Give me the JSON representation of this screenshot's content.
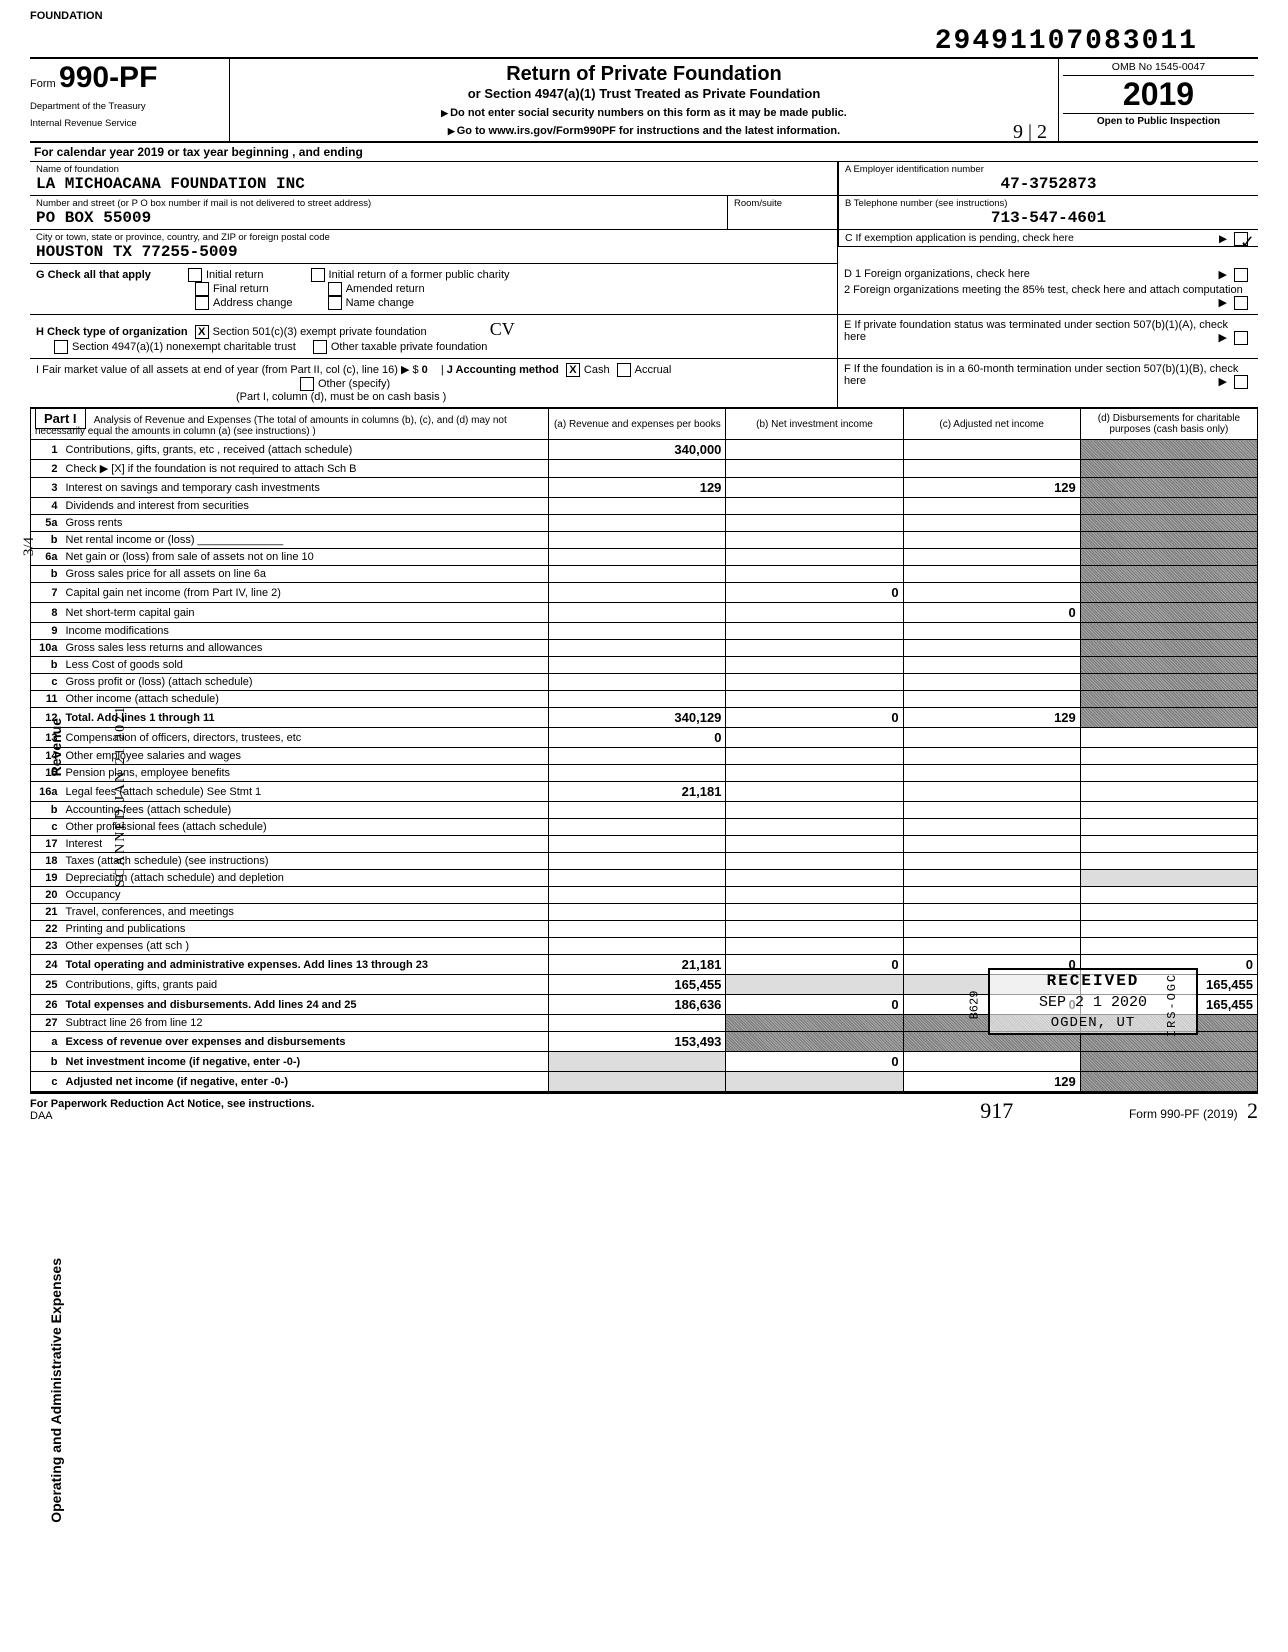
{
  "top_annotation": "FOUNDATION",
  "barcode_number": "29491107083011",
  "header": {
    "form_word": "Form",
    "form_number": "990-PF",
    "dept1": "Department of the Treasury",
    "dept2": "Internal Revenue Service",
    "title": "Return of Private Foundation",
    "subtitle": "or Section 4947(a)(1) Trust Treated as Private Foundation",
    "note1": "Do not enter social security numbers on this form as it may be made public.",
    "note2": "Go to www.irs.gov/Form990PF for instructions and the latest information.",
    "omb": "OMB No  1545-0047",
    "year": "2019",
    "open": "Open to Public Inspection",
    "hand_912": "9 | 2"
  },
  "cal_year": "For calendar year 2019 or tax year beginning                                 , and ending",
  "name_block": {
    "name_label": "Name of foundation",
    "name_value": "LA MICHOACANA FOUNDATION INC",
    "addr_label": "Number and street (or P O  box number if mail is not delivered to street address)",
    "addr_value": "PO BOX 55009",
    "room_label": "Room/suite",
    "city_label": "City or town, state or province, country, and ZIP or foreign postal code",
    "city_value": "HOUSTON                       TX 77255-5009"
  },
  "right_block": {
    "a_label": "A    Employer identification number",
    "a_value": "47-3752873",
    "b_label": "B    Telephone number (see instructions)",
    "b_value": "713-547-4601",
    "c_label": "C    If exemption application is pending, check here",
    "d1_label": "D   1   Foreign organizations, check here",
    "d2_label": "2   Foreign organizations meeting the 85% test, check here and attach computation",
    "e_label": "E    If private foundation status was terminated under section 507(b)(1)(A), check here",
    "f_label": "F    If the foundation is in a 60-month termination under section 507(b)(1)(B), check here"
  },
  "g_block": {
    "g_label": "G  Check all that apply",
    "opts": [
      "Initial return",
      "Final return",
      "Address change",
      "Initial return of a former public charity",
      "Amended return",
      "Name change"
    ]
  },
  "h_block": {
    "h_label": "H  Check type of organization",
    "opt1": "Section 501(c)(3) exempt private foundation",
    "opt2": "Section 4947(a)(1) nonexempt charitable trust",
    "opt3": "Other taxable private foundation",
    "hand_cv": "CV"
  },
  "i_block": {
    "i_label": "I   Fair market value of all assets at end of year (from Part II, col  (c), line 16) ▶  $",
    "i_value": "0",
    "j_label": "J   Accounting method",
    "j_cash": "Cash",
    "j_accrual": "Accrual",
    "j_other": "Other (specify)",
    "j_note": "(Part I, column (d), must be on cash basis )"
  },
  "part1": {
    "label": "Part I",
    "desc": "Analysis of Revenue and Expenses (The total of amounts in columns (b), (c), and (d) may not necessarily equal the amounts in column (a) (see instructions) )",
    "cols": {
      "a": "(a) Revenue and expenses per books",
      "b": "(b) Net investment income",
      "c": "(c) Adjusted net income",
      "d": "(d) Disbursements for charitable purposes (cash basis only)"
    }
  },
  "sidebars": {
    "revenue": "Revenue",
    "expenses": "Operating and Administrative Expenses",
    "scanned_date": "SCANNED JAN 21 2021",
    "hand_34": "3/4"
  },
  "lines": [
    {
      "n": "1",
      "desc": "Contributions, gifts, grants, etc , received (attach schedule)",
      "a": "340,000",
      "b": "",
      "c": "",
      "d": ""
    },
    {
      "n": "2",
      "desc": "Check ▶  [X]   if the foundation is not required to attach Sch  B",
      "a": "",
      "b": "",
      "c": "",
      "d": ""
    },
    {
      "n": "3",
      "desc": "Interest on savings and temporary cash investments",
      "a": "129",
      "b": "",
      "c": "129",
      "d": ""
    },
    {
      "n": "4",
      "desc": "Dividends and interest from securities",
      "a": "",
      "b": "",
      "c": "",
      "d": ""
    },
    {
      "n": "5a",
      "desc": "Gross rents",
      "a": "",
      "b": "",
      "c": "",
      "d": ""
    },
    {
      "n": "b",
      "desc": "Net rental income or (loss)  ______________",
      "a": "",
      "b": "",
      "c": "",
      "d": ""
    },
    {
      "n": "6a",
      "desc": "Net gain or (loss) from sale of assets not on line 10",
      "a": "",
      "b": "",
      "c": "",
      "d": ""
    },
    {
      "n": "b",
      "desc": "Gross sales price for all assets on line 6a",
      "a": "",
      "b": "",
      "c": "",
      "d": ""
    },
    {
      "n": "7",
      "desc": "Capital gain net income (from Part IV, line 2)",
      "a": "",
      "b": "0",
      "c": "",
      "d": ""
    },
    {
      "n": "8",
      "desc": "Net short-term capital gain",
      "a": "",
      "b": "",
      "c": "0",
      "d": ""
    },
    {
      "n": "9",
      "desc": "Income modifications",
      "a": "",
      "b": "",
      "c": "",
      "d": ""
    },
    {
      "n": "10a",
      "desc": "Gross sales less returns and allowances",
      "a": "",
      "b": "",
      "c": "",
      "d": ""
    },
    {
      "n": "b",
      "desc": "Less  Cost of goods sold",
      "a": "",
      "b": "",
      "c": "",
      "d": ""
    },
    {
      "n": "c",
      "desc": "Gross profit or (loss) (attach schedule)",
      "a": "",
      "b": "",
      "c": "",
      "d": ""
    },
    {
      "n": "11",
      "desc": "Other income (attach schedule)",
      "a": "",
      "b": "",
      "c": "",
      "d": ""
    },
    {
      "n": "12",
      "desc": "Total. Add lines 1 through 11",
      "a": "340,129",
      "b": "0",
      "c": "129",
      "d": "",
      "bold": true
    },
    {
      "n": "13",
      "desc": "Compensation of officers, directors, trustees, etc",
      "a": "0",
      "b": "",
      "c": "",
      "d": ""
    },
    {
      "n": "14",
      "desc": "Other employee salaries and wages",
      "a": "",
      "b": "",
      "c": "",
      "d": ""
    },
    {
      "n": "15",
      "desc": "Pension plans, employee benefits",
      "a": "",
      "b": "",
      "c": "",
      "d": ""
    },
    {
      "n": "16a",
      "desc": "Legal fees (attach schedule)  See Stmt 1",
      "a": "21,181",
      "b": "",
      "c": "",
      "d": ""
    },
    {
      "n": "b",
      "desc": "Accounting fees (attach schedule)",
      "a": "",
      "b": "",
      "c": "",
      "d": ""
    },
    {
      "n": "c",
      "desc": "Other professional fees (attach schedule)",
      "a": "",
      "b": "",
      "c": "",
      "d": ""
    },
    {
      "n": "17",
      "desc": "Interest",
      "a": "",
      "b": "",
      "c": "",
      "d": ""
    },
    {
      "n": "18",
      "desc": "Taxes (attach schedule) (see instructions)",
      "a": "",
      "b": "",
      "c": "",
      "d": ""
    },
    {
      "n": "19",
      "desc": "Depreciation (attach schedule) and depletion",
      "a": "",
      "b": "",
      "c": "",
      "d": ""
    },
    {
      "n": "20",
      "desc": "Occupancy",
      "a": "",
      "b": "",
      "c": "",
      "d": ""
    },
    {
      "n": "21",
      "desc": "Travel, conferences, and meetings",
      "a": "",
      "b": "",
      "c": "",
      "d": ""
    },
    {
      "n": "22",
      "desc": "Printing and publications",
      "a": "",
      "b": "",
      "c": "",
      "d": ""
    },
    {
      "n": "23",
      "desc": "Other expenses (att  sch )",
      "a": "",
      "b": "",
      "c": "",
      "d": ""
    },
    {
      "n": "24",
      "desc": "Total operating and administrative expenses. Add lines 13 through 23",
      "a": "21,181",
      "b": "0",
      "c": "0",
      "d": "0",
      "bold": true
    },
    {
      "n": "25",
      "desc": "Contributions, gifts, grants paid",
      "a": "165,455",
      "b": "",
      "c": "",
      "d": "165,455"
    },
    {
      "n": "26",
      "desc": "Total expenses and disbursements. Add lines 24 and 25",
      "a": "186,636",
      "b": "0",
      "c": "0",
      "d": "165,455",
      "bold": true
    },
    {
      "n": "27",
      "desc": "Subtract line 26 from line 12",
      "a": "",
      "b": "",
      "c": "",
      "d": ""
    },
    {
      "n": "a",
      "desc": "Excess of revenue over expenses and disbursements",
      "a": "153,493",
      "b": "",
      "c": "",
      "d": "",
      "bold": true
    },
    {
      "n": "b",
      "desc": "Net investment income (if negative, enter -0-)",
      "a": "",
      "b": "0",
      "c": "",
      "d": "",
      "bold": true
    },
    {
      "n": "c",
      "desc": "Adjusted net income (if negative, enter -0-)",
      "a": "",
      "b": "",
      "c": "129",
      "d": "",
      "bold": true
    }
  ],
  "received_stamp": {
    "r1": "RECEIVED",
    "r2": "SEP 2 1 2020",
    "r3": "OGDEN, UT",
    "irs": "IRS-OGC",
    "b629": "B629"
  },
  "footer": {
    "left": "For Paperwork Reduction Act Notice, see instructions.",
    "daa": "DAA",
    "right_form": "Form 990-PF (2019)",
    "hand_917": "917",
    "hand_2": "2"
  },
  "colors": {
    "border": "#000000",
    "bg": "#ffffff",
    "shade": "#888888"
  }
}
